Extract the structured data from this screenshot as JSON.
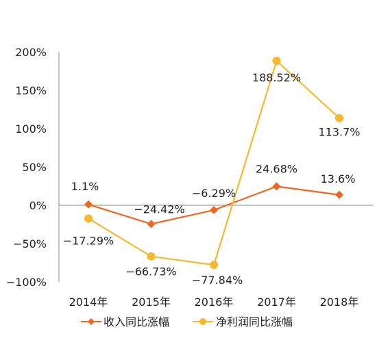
{
  "chart_data": {
    "type": "line",
    "categories": [
      "2014年",
      "2015年",
      "2016年",
      "2017年",
      "2018年"
    ],
    "series": [
      {
        "name": "收入同比涨幅",
        "color": "#f0661f",
        "marker": "diamond",
        "values": [
          1.1,
          -24.42,
          -6.29,
          24.68,
          13.6
        ],
        "labels": [
          "1.1%",
          "−24.42%",
          "−6.29%",
          "24.68%",
          "13.6%"
        ]
      },
      {
        "name": "净利润同比涨幅",
        "color": "#f8b82e",
        "marker": "circle",
        "values": [
          -17.29,
          -66.73,
          -77.84,
          188.52,
          113.7
        ],
        "labels": [
          "−17.29%",
          "−66.73%",
          "−77.84%",
          "188.52%",
          "113.7%"
        ]
      }
    ],
    "ylim": [
      -100,
      200
    ],
    "yticks": [
      200,
      150,
      100,
      50,
      0,
      -50,
      -100
    ],
    "ytick_labels": [
      "200%",
      "150%",
      "100%",
      "50%",
      "0%",
      "−50%",
      "−100%"
    ],
    "grid": false,
    "legend": "bottom",
    "title": "",
    "xlabel": "",
    "ylabel": ""
  }
}
